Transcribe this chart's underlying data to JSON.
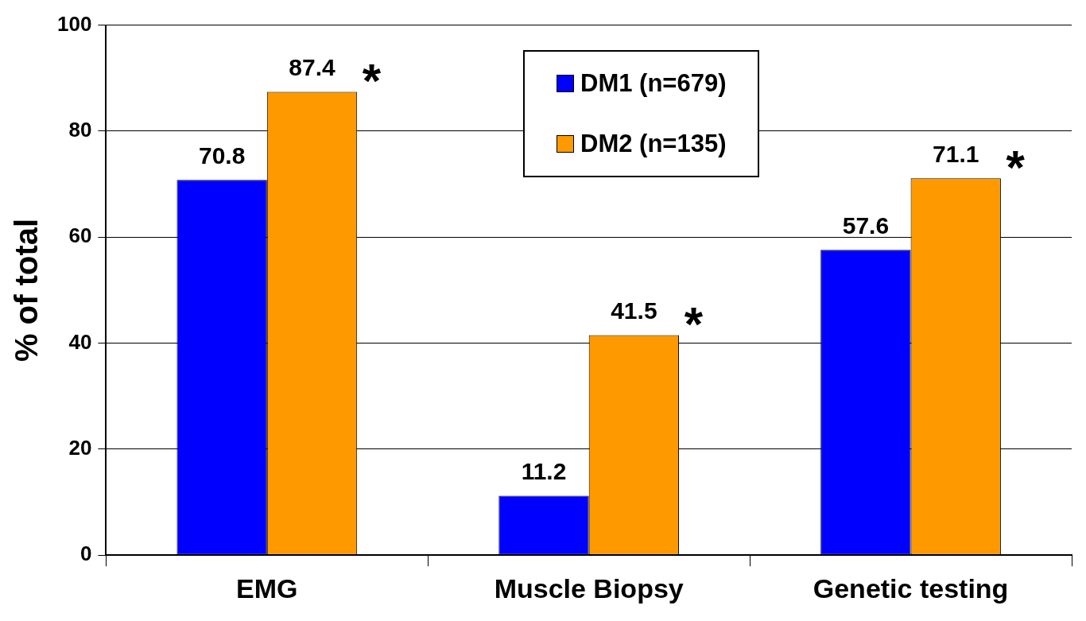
{
  "chart_data": {
    "type": "bar",
    "ylabel": "% of total",
    "categories": [
      "EMG",
      "Muscle Biopsy",
      "Genetic testing"
    ],
    "series": [
      {
        "name": "DM1 (n=679)",
        "color": "#0000ff",
        "values": [
          70.8,
          11.2,
          57.6
        ]
      },
      {
        "name": "DM2 (n=135)",
        "color": "#ff9900",
        "values": [
          87.4,
          41.5,
          71.1
        ]
      }
    ],
    "ylim": [
      0,
      100
    ],
    "yticks": [
      0,
      20,
      40,
      60,
      80,
      100
    ],
    "grid": "y",
    "legend": "top",
    "data_labels": true,
    "annotations": [
      {
        "text": "*",
        "x": "EMG",
        "y": 87.4
      },
      {
        "text": "*",
        "x": "Muscle Biopsy",
        "y": 41.5
      },
      {
        "text": "*",
        "x": "Genetic testing",
        "y": 71.1
      }
    ]
  }
}
